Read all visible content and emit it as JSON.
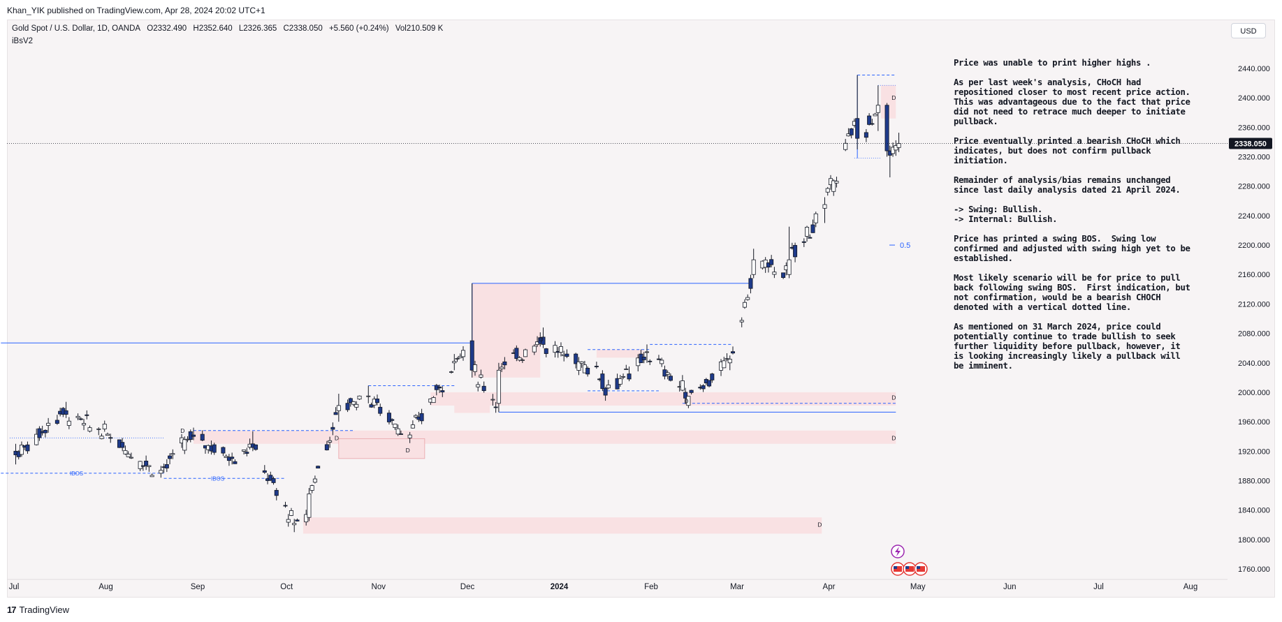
{
  "header": {
    "published": "Khan_YIK published on TradingView.com, Apr 28, 2024 20:02 UTC+1"
  },
  "legend": {
    "symbol": "Gold Spot / U.S. Dollar, 1D, OANDA",
    "open": "O2332.490",
    "high": "H2352.640",
    "low": "L2326.365",
    "close": "C2338.050",
    "change": "+5.560 (+0.24%)",
    "volume": "Vol210.509 K",
    "indicator": "iBsV2"
  },
  "currency_button": "USD",
  "footer": {
    "brand": "TradingView",
    "mark": "17"
  },
  "notes": [
    "Price was unable to print higher highs .",
    "As per last week's analysis, CHoCH had repositioned closer to most recent price action. This was advantageous due to the fact that price did not need to retrace much deeper to initiate pullback.",
    "Price eventually printed a bearish CHoCH which indicates, but does not confirm pullback initiation.",
    "Remainder of analysis/bias remains unchanged since last daily analysis dated 21 April 2024.",
    "-> Swing: Bullish.\n-> Internal: Bullish.",
    "Price has printed a swing BOS.  Swing low confirmed and adjusted with swing high yet to be established.",
    "Most likely scenario will be for price to pull back following swing BOS.  First indication, but not confirmation, would be a bearish CHOCH denoted with a vertical dotted line.",
    "As mentioned on 31 March 2024, price could potentially continue to trade bullish to seek further liquidity before pullback, however, it is looking increasingly likely a pullback will be imminent."
  ],
  "chart_data": {
    "type": "candlestick",
    "symbol": "Gold Spot / U.S. Dollar",
    "interval": "1D",
    "ylim": [
      1740,
      2470
    ],
    "y_ticks": [
      1760,
      1800,
      1840,
      1880,
      1920,
      1960,
      2000,
      2040,
      2080,
      2120,
      2160,
      2200,
      2240,
      2280,
      2320,
      2360,
      2400,
      2440
    ],
    "y_tick_labels": [
      "1760.000",
      "1800.000",
      "1840.000",
      "1880.000",
      "1920.000",
      "1960.000",
      "2000.000",
      "2040.000",
      "2080.000",
      "2120.000",
      "2160.000",
      "2200.000",
      "2240.000",
      "2280.000",
      "2320.000",
      "2360.000",
      "2400.000",
      "2440.000"
    ],
    "x_labels": [
      "Jul",
      "Aug",
      "Sep",
      "Oct",
      "Nov",
      "Dec",
      "2024",
      "Feb",
      "Mar",
      "Apr",
      "May",
      "Jun",
      "Jul",
      "Aug"
    ],
    "last_price": 2338.05,
    "last_price_label": "2338.050",
    "colors": {
      "up": "#ffffff",
      "down": "#1e3a8a",
      "wick": "#131722",
      "zone": "#f9e1e3",
      "line": "#2962ff"
    },
    "zone_label": "D",
    "ibos_label": "IBOS",
    "fib_label": "0.5",
    "anchor_candles": [
      {
        "date": "2023-07-03",
        "o": 1920,
        "h": 1930,
        "l": 1902,
        "c": 1915
      },
      {
        "date": "2023-07-14",
        "o": 1955,
        "h": 1965,
        "l": 1945,
        "c": 1958
      },
      {
        "date": "2023-07-20",
        "o": 1975,
        "h": 1987,
        "l": 1965,
        "c": 1970
      },
      {
        "date": "2023-08-08",
        "o": 1932,
        "h": 1938,
        "l": 1920,
        "c": 1925
      },
      {
        "date": "2023-08-21",
        "o": 1890,
        "h": 1900,
        "l": 1884,
        "c": 1894
      },
      {
        "date": "2023-09-01",
        "o": 1942,
        "h": 1952,
        "l": 1935,
        "c": 1940
      },
      {
        "date": "2023-09-14",
        "o": 1912,
        "h": 1918,
        "l": 1902,
        "c": 1910
      },
      {
        "date": "2023-09-21",
        "o": 1930,
        "h": 1947,
        "l": 1920,
        "c": 1925
      },
      {
        "date": "2023-10-05",
        "o": 1820,
        "h": 1828,
        "l": 1810,
        "c": 1822
      },
      {
        "date": "2023-10-10",
        "o": 1830,
        "h": 1870,
        "l": 1825,
        "c": 1862
      },
      {
        "date": "2023-10-20",
        "o": 1975,
        "h": 1998,
        "l": 1960,
        "c": 1982
      },
      {
        "date": "2023-10-30",
        "o": 1995,
        "h": 2009,
        "l": 1985,
        "c": 1995
      },
      {
        "date": "2023-11-13",
        "o": 1938,
        "h": 1946,
        "l": 1931,
        "c": 1942
      },
      {
        "date": "2023-11-28",
        "o": 2040,
        "h": 2052,
        "l": 2030,
        "c": 2042
      },
      {
        "date": "2023-12-04",
        "o": 2070,
        "h": 2148,
        "l": 2020,
        "c": 2030
      },
      {
        "date": "2023-12-13",
        "o": 1985,
        "h": 2040,
        "l": 1973,
        "c": 2030
      },
      {
        "date": "2023-12-28",
        "o": 2075,
        "h": 2088,
        "l": 2060,
        "c": 2065
      },
      {
        "date": "2024-01-17",
        "o": 2025,
        "h": 2030,
        "l": 2002,
        "c": 2005
      },
      {
        "date": "2024-01-26",
        "o": 2025,
        "h": 2035,
        "l": 2015,
        "c": 2018
      },
      {
        "date": "2024-02-01",
        "o": 2055,
        "h": 2065,
        "l": 2040,
        "c": 2055
      },
      {
        "date": "2024-02-14",
        "o": 2000,
        "h": 2006,
        "l": 1984,
        "c": 1992
      },
      {
        "date": "2024-02-29",
        "o": 2040,
        "h": 2050,
        "l": 2030,
        "c": 2045
      },
      {
        "date": "2024-03-08",
        "o": 2160,
        "h": 2195,
        "l": 2155,
        "c": 2180
      },
      {
        "date": "2024-03-20",
        "o": 2160,
        "h": 2225,
        "l": 2155,
        "c": 2180
      },
      {
        "date": "2024-04-01",
        "o": 2250,
        "h": 2265,
        "l": 2230,
        "c": 2255
      },
      {
        "date": "2024-04-12",
        "o": 2372,
        "h": 2431,
        "l": 2330,
        "c": 2345
      },
      {
        "date": "2024-04-19",
        "o": 2380,
        "h": 2417,
        "l": 2355,
        "c": 2390
      },
      {
        "date": "2024-04-22",
        "o": 2390,
        "h": 2393,
        "l": 2320,
        "c": 2328
      },
      {
        "date": "2024-04-23",
        "o": 2328,
        "h": 2335,
        "l": 2292,
        "c": 2322
      },
      {
        "date": "2024-04-26",
        "o": 2332.49,
        "h": 2352.64,
        "l": 2326.365,
        "c": 2338.05
      }
    ]
  }
}
